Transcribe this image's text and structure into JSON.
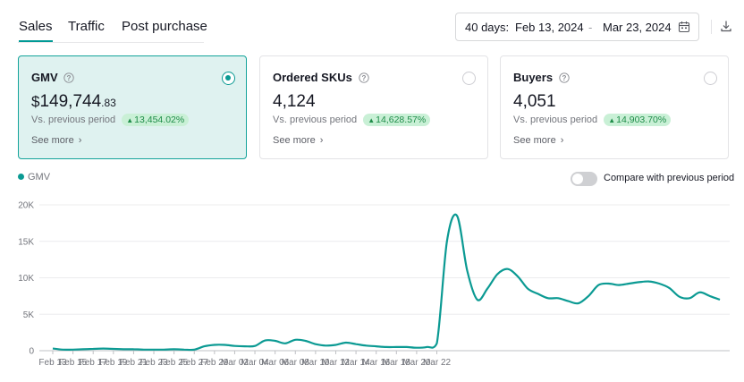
{
  "tabs": [
    {
      "label": "Sales",
      "active": true
    },
    {
      "label": "Traffic",
      "active": false
    },
    {
      "label": "Post purchase",
      "active": false
    }
  ],
  "date_range": {
    "prefix": "40 days:",
    "start": "Feb 13, 2024",
    "separator": "-",
    "end": "Mar 23, 2024",
    "icon": "calendar-icon"
  },
  "download_icon": "download-icon",
  "cards": [
    {
      "title": "GMV",
      "currency": "$",
      "value": "149,744",
      "decimals": ".83",
      "compare_label": "Vs. previous period",
      "change": "13,454.02%",
      "see_more": "See more",
      "selected": true
    },
    {
      "title": "Ordered SKUs",
      "currency": "",
      "value": "4,124",
      "decimals": "",
      "compare_label": "Vs. previous period",
      "change": "14,628.57%",
      "see_more": "See more",
      "selected": false
    },
    {
      "title": "Buyers",
      "currency": "",
      "value": "4,051",
      "decimals": "",
      "compare_label": "Vs. previous period",
      "change": "14,903.70%",
      "see_more": "See more",
      "selected": false
    }
  ],
  "legend": {
    "label": "GMV"
  },
  "compare_toggle": {
    "label": "Compare with previous period",
    "on": false
  },
  "colors": {
    "accent": "#0b9a93",
    "card_selected_bg": "#dff2f0",
    "positive_badge_bg": "#c9f0d6",
    "positive_text": "#1f8d49"
  },
  "chart_data": {
    "type": "line",
    "series": [
      {
        "name": "GMV",
        "values": [
          300,
          150,
          150,
          200,
          250,
          300,
          250,
          200,
          200,
          150,
          150,
          150,
          200,
          150,
          150,
          600,
          800,
          800,
          650,
          600,
          650,
          1400,
          1350,
          1000,
          1500,
          1350,
          900,
          700,
          800,
          1100,
          900,
          700,
          600,
          500,
          500,
          500,
          400,
          500,
          1000,
          15000,
          18500,
          11000,
          7000,
          8500,
          10500,
          11200,
          10200,
          8500,
          7800,
          7200,
          7200,
          6800,
          6500,
          7500,
          9000,
          9200,
          9000,
          9200,
          9400,
          9500,
          9200,
          8600,
          7400,
          7200,
          8000,
          7500,
          7000
        ]
      }
    ],
    "x_ticks": [
      "Feb 13",
      "Feb 15",
      "Feb 17",
      "Feb 19",
      "Feb 21",
      "Feb 23",
      "Feb 25",
      "Feb 27",
      "Feb 29",
      "Mar 02",
      "Mar 04",
      "Mar 06",
      "Mar 08",
      "Mar 10",
      "Mar 12",
      "Mar 14",
      "Mar 16",
      "Mar 18",
      "Mar 20",
      "Mar 22"
    ],
    "y_ticks": [
      "0",
      "5K",
      "10K",
      "15K",
      "20K"
    ],
    "ylim": [
      0,
      20000
    ],
    "grid": true,
    "legend_position": "top-left"
  }
}
